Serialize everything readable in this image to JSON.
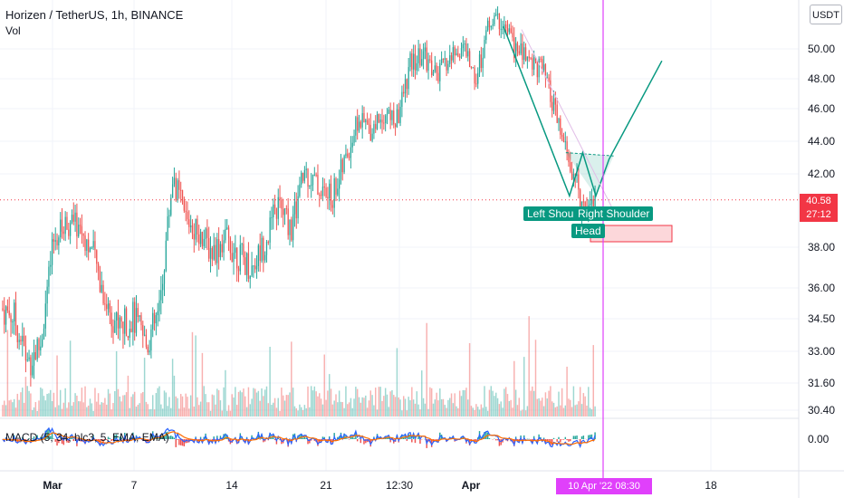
{
  "header": {
    "title": "Horizen / TetherUS, 1h, BINANCE",
    "volume_label": "Vol",
    "currency": "USDT"
  },
  "macd": {
    "legend": "MACD (5, 34, hlc3, 5, EMA, EMA)"
  },
  "pattern": {
    "left_shoulder": "Left Shou",
    "right_shoulder": "Right Shoulder",
    "head": "Head"
  },
  "price_tag": {
    "last_price": "40.58",
    "countdown": "27:12"
  },
  "time_tag": "10 Apr '22   08:30",
  "colors": {
    "up": "#26a69a",
    "down": "#ef5350",
    "pattern": "#089981",
    "cursor": "#e040fb",
    "price_line": "#f23645"
  },
  "chart_data": {
    "type": "candlestick",
    "symbol": "Horizen / TetherUS",
    "interval": "1h",
    "exchange": "BINANCE",
    "y_axis_ticks": [
      "50.00",
      "48.00",
      "46.00",
      "44.00",
      "42.00",
      "38.00",
      "36.00",
      "34.50",
      "33.00",
      "31.60",
      "30.40"
    ],
    "macd_axis_ticks": [
      "0.00"
    ],
    "x_axis_ticks": [
      "Mar",
      "7",
      "14",
      "21",
      "12:30",
      "Apr",
      "18"
    ],
    "last_price": 40.58,
    "close_path": [
      {
        "x": "Feb 24",
        "y": 35.0
      },
      {
        "x": "Feb 25",
        "y": 34.6
      },
      {
        "x": "Feb 26",
        "y": 32.5
      },
      {
        "x": "Feb 27",
        "y": 33.3
      },
      {
        "x": "Feb 28",
        "y": 38.3
      },
      {
        "x": "Mar 1",
        "y": 39.4
      },
      {
        "x": "Mar 2",
        "y": 39.1
      },
      {
        "x": "Mar 3",
        "y": 37.6
      },
      {
        "x": "Mar 4",
        "y": 35.2
      },
      {
        "x": "Mar 5",
        "y": 34.1
      },
      {
        "x": "Mar 6",
        "y": 34.6
      },
      {
        "x": "Mar 7",
        "y": 33.3
      },
      {
        "x": "Mar 8",
        "y": 34.8
      },
      {
        "x": "Mar 9",
        "y": 41.8
      },
      {
        "x": "Mar 10",
        "y": 39.6
      },
      {
        "x": "Mar 11",
        "y": 38.9
      },
      {
        "x": "Mar 12",
        "y": 37.8
      },
      {
        "x": "Mar 13",
        "y": 38.5
      },
      {
        "x": "Mar 14",
        "y": 37.6
      },
      {
        "x": "Mar 15",
        "y": 37.0
      },
      {
        "x": "Mar 16",
        "y": 38.3
      },
      {
        "x": "Mar 17",
        "y": 40.3
      },
      {
        "x": "Mar 18",
        "y": 39.0
      },
      {
        "x": "Mar 19",
        "y": 42.2
      },
      {
        "x": "Mar 20",
        "y": 41.3
      },
      {
        "x": "Mar 21",
        "y": 40.6
      },
      {
        "x": "Mar 22",
        "y": 42.6
      },
      {
        "x": "Mar 23",
        "y": 45.2
      },
      {
        "x": "Mar 24",
        "y": 44.8
      },
      {
        "x": "Mar 25",
        "y": 45.8
      },
      {
        "x": "Mar 26",
        "y": 45.2
      },
      {
        "x": "Mar 27",
        "y": 48.9
      },
      {
        "x": "Mar 28",
        "y": 49.6
      },
      {
        "x": "Mar 29",
        "y": 48.2
      },
      {
        "x": "Mar 30",
        "y": 49.3
      },
      {
        "x": "Mar 31",
        "y": 50.2
      },
      {
        "x": "Apr 1",
        "y": 48.0
      },
      {
        "x": "Apr 2",
        "y": 51.9
      },
      {
        "x": "Apr 3",
        "y": 51.8
      },
      {
        "x": "Apr 4",
        "y": 49.9
      },
      {
        "x": "Apr 5",
        "y": 49.4
      },
      {
        "x": "Apr 6",
        "y": 48.6
      },
      {
        "x": "Apr 7",
        "y": 45.6
      },
      {
        "x": "Apr 8",
        "y": 42.7
      },
      {
        "x": "Apr 9",
        "y": 40.4
      },
      {
        "x": "Apr 10",
        "y": 40.6
      }
    ],
    "head_and_shoulders_projection": [
      {
        "x": "Apr 3",
        "y": 51.5
      },
      {
        "x": "Apr 8",
        "y": 40.8
      },
      {
        "x": "Apr 9",
        "y": 43.3
      },
      {
        "x": "Apr 10",
        "y": 40.8
      },
      {
        "x": "Apr 11",
        "y": 42.9
      },
      {
        "x": "Apr 15",
        "y": 49.2
      }
    ]
  }
}
